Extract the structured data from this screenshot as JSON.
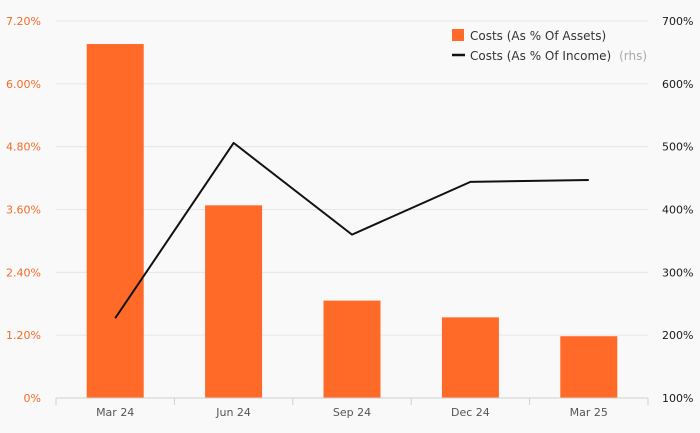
{
  "chart_data": {
    "type": "bar",
    "categories": [
      "Mar 24",
      "Jun 24",
      "Sep 24",
      "Dec 24",
      "Mar 25"
    ],
    "series": [
      {
        "name": "Costs (As % Of Assets)",
        "axis": "left",
        "kind": "bar",
        "values": [
          6.76,
          3.68,
          1.86,
          1.54,
          1.18
        ]
      },
      {
        "name": "Costs (As % Of Income)",
        "axis": "right",
        "kind": "line",
        "values": [
          227,
          506,
          360,
          444,
          447
        ]
      }
    ],
    "y_left": {
      "min": 0,
      "max": 7.2,
      "ticks": [
        "0%",
        "1.20%",
        "2.40%",
        "3.60%",
        "4.80%",
        "6.00%",
        "7.20%"
      ]
    },
    "y_right": {
      "min": 100,
      "max": 700,
      "ticks": [
        "100%",
        "200%",
        "300%",
        "400%",
        "500%",
        "600%",
        "700%"
      ]
    },
    "legend": {
      "placement": "top-right",
      "rhs_suffix": "(rhs)"
    },
    "grid": true,
    "colors": {
      "bar": "#ff6a28",
      "line": "#111111",
      "left_axis_text": "#f26b2a",
      "grid": "#e6e6e6",
      "background": "#f9f9f9"
    }
  }
}
